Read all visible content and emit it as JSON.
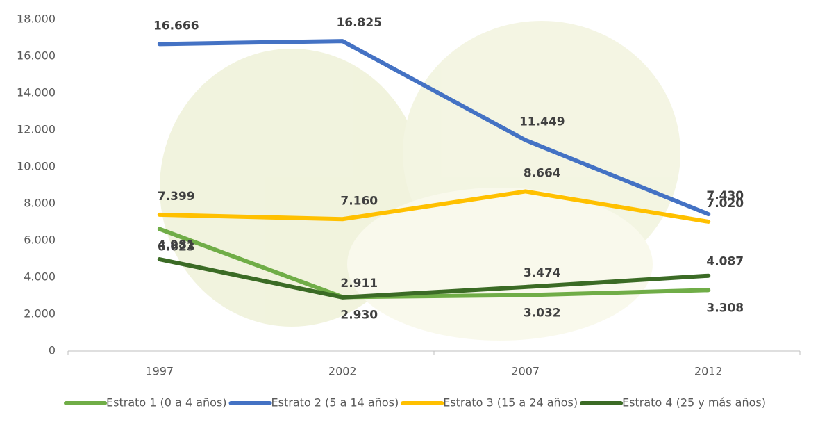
{
  "chart_data": {
    "type": "line",
    "categories": [
      "1997",
      "2002",
      "2007",
      "2012"
    ],
    "ylim": [
      0,
      18000
    ],
    "yticks": [
      0,
      {
        "value": 2000,
        "label": "2.000"
      },
      {
        "value": 4000,
        "label": "4.000"
      },
      {
        "value": 6000,
        "label": "6.000"
      },
      {
        "value": 8000,
        "label": "8.000"
      },
      {
        "value": 10000,
        "label": "10.000"
      },
      {
        "value": 12000,
        "label": "12.000"
      },
      {
        "value": 14000,
        "label": "14.000"
      },
      {
        "value": 16000,
        "label": "16.000"
      },
      {
        "value": 18000,
        "label": "18.000"
      }
    ],
    "grid": false,
    "legend": "bottom",
    "series": [
      {
        "name": "Estrato 1 (0 a 4 años)",
        "color": "#70ad47",
        "values": [
          6623,
          2930,
          3032,
          3308
        ],
        "value_labels": [
          "6.623",
          "2.930",
          "3.032",
          "3.308"
        ]
      },
      {
        "name": "Estrato 2 (5 a 14 años)",
        "color": "#4472c4",
        "values": [
          16666,
          16825,
          11449,
          7430
        ],
        "value_labels": [
          "16.666",
          "16.825",
          "11.449",
          "7.430"
        ]
      },
      {
        "name": "Estrato 3 (15 a 24 años)",
        "color": "#ffc000",
        "values": [
          7399,
          7160,
          8664,
          7020
        ],
        "value_labels": [
          "7.399",
          "7.160",
          "8.664",
          "7.020"
        ]
      },
      {
        "name": "Estrato 4 (25 y más años)",
        "color": "#3b6b25",
        "values": [
          4981,
          2911,
          3474,
          4087
        ],
        "value_labels": [
          "4.981",
          "2.911",
          "3.474",
          "4.087"
        ]
      }
    ]
  }
}
